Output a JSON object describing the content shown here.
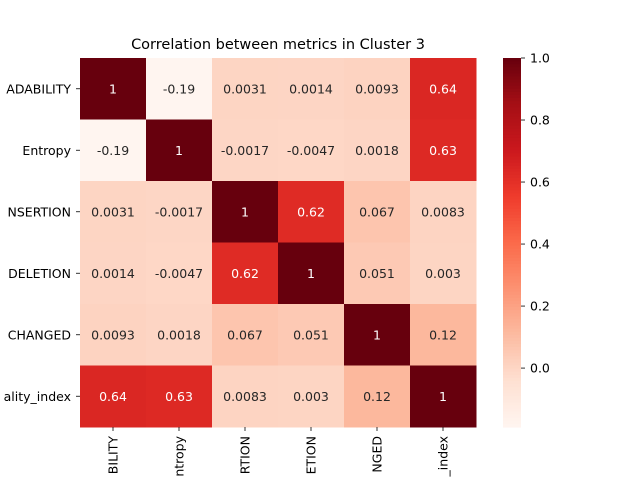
{
  "chart_data": {
    "type": "heatmap",
    "title": "Correlation between metrics in Cluster 3",
    "row_labels": [
      "ADABILITY",
      "Entropy",
      "NSERTION",
      "DELETION",
      "CHANGED",
      "ality_index"
    ],
    "col_labels": [
      "BILITY",
      "ntropy",
      "RTION",
      "ETION",
      "NGED",
      "_index"
    ],
    "values": [
      [
        1,
        -0.19,
        0.0031,
        0.0014,
        0.0093,
        0.64
      ],
      [
        -0.19,
        1,
        -0.0017,
        -0.0047,
        0.0018,
        0.63
      ],
      [
        0.0031,
        -0.0017,
        1,
        0.62,
        0.067,
        0.0083
      ],
      [
        0.0014,
        -0.0047,
        0.62,
        1,
        0.051,
        0.003
      ],
      [
        0.0093,
        0.0018,
        0.067,
        0.051,
        1,
        0.12
      ],
      [
        0.64,
        0.63,
        0.0083,
        0.003,
        0.12,
        1
      ]
    ],
    "cell_labels": [
      [
        "1",
        "-0.19",
        "0.0031",
        "0.0014",
        "0.0093",
        "0.64"
      ],
      [
        "-0.19",
        "1",
        "-0.0017",
        "-0.0047",
        "0.0018",
        "0.63"
      ],
      [
        "0.0031",
        "-0.0017",
        "1",
        "0.62",
        "0.067",
        "0.0083"
      ],
      [
        "0.0014",
        "-0.0047",
        "0.62",
        "1",
        "0.051",
        "0.003"
      ],
      [
        "0.0093",
        "0.0018",
        "0.067",
        "0.051",
        "1",
        "0.12"
      ],
      [
        "0.64",
        "0.63",
        "0.0083",
        "0.003",
        "0.12",
        "1"
      ]
    ],
    "colorbar": {
      "min": -0.19,
      "max": 1,
      "ticks": [
        0.0,
        0.2,
        0.4,
        0.6,
        0.8,
        1.0
      ],
      "tick_labels": [
        "0.0",
        "0.2",
        "0.4",
        "0.6",
        "0.8",
        "1.0"
      ]
    },
    "colormap": "Reds",
    "legend_placement": "right"
  }
}
